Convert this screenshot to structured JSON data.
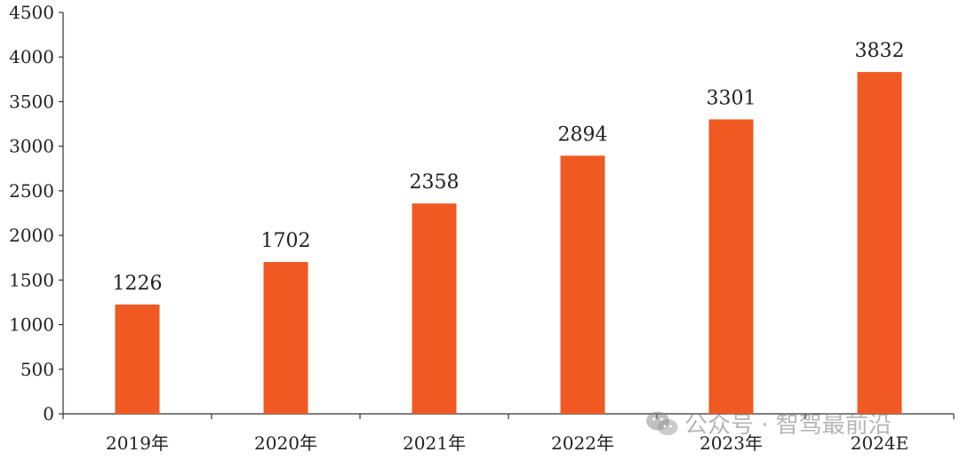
{
  "chart_data": {
    "type": "bar",
    "title": "",
    "xlabel": "",
    "ylabel": "",
    "categories": [
      "2019年",
      "2020年",
      "2021年",
      "2022年",
      "2023年",
      "2024E"
    ],
    "values": [
      1226,
      1702,
      2358,
      2894,
      3301,
      3832
    ],
    "ylim": [
      0,
      4500
    ],
    "yticks": [
      0,
      500,
      1000,
      1500,
      2000,
      2500,
      3000,
      3500,
      4000,
      4500
    ],
    "bar_color": "#F05A22",
    "grid": false,
    "data_labels": true
  },
  "watermark": {
    "text": "公众号 · 智驾最前沿",
    "icon": "wechat-icon"
  }
}
